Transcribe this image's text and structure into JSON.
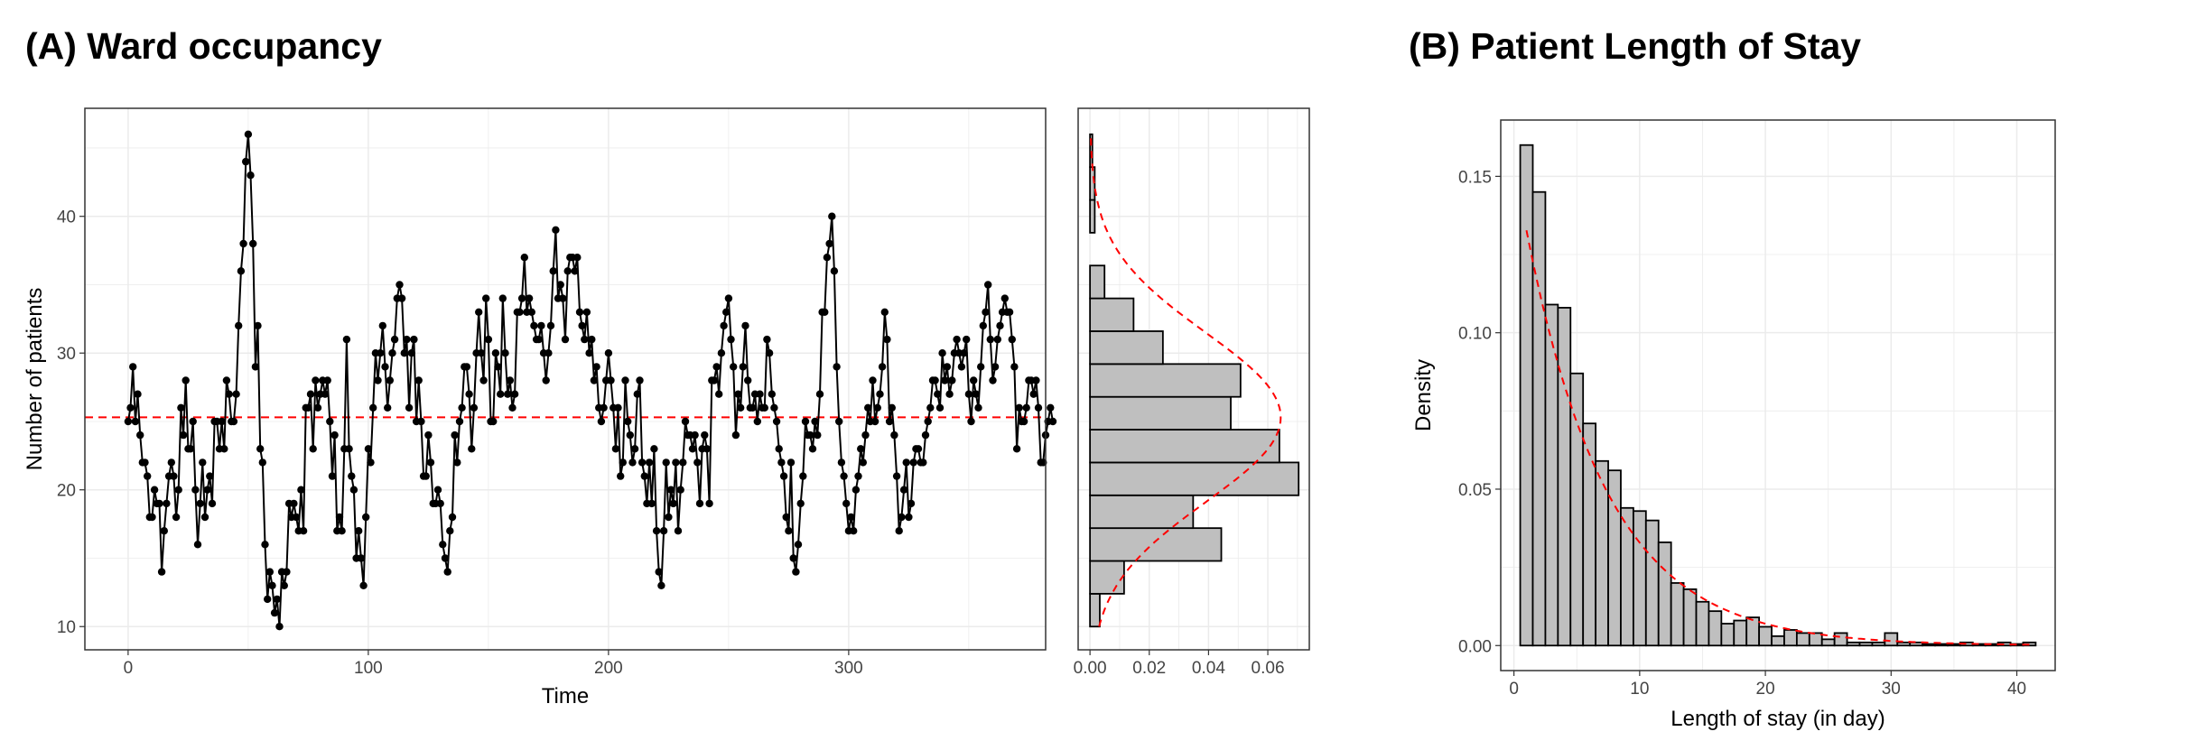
{
  "colors": {
    "line": "#000000",
    "reference": "#ff0000",
    "bar_fill": "#bfbfbf",
    "bar_stroke": "#000000",
    "grid": "#ebebeb",
    "panel_border": "#333333"
  },
  "chart_data": [
    {
      "id": "A",
      "type": "line",
      "title": "(A) Ward occupancy",
      "xlabel": "Time",
      "ylabel": "Number of patients",
      "xlim": [
        -18,
        382
      ],
      "ylim": [
        8.3,
        47.9
      ],
      "xticks": [
        0,
        100,
        200,
        300
      ],
      "yticks": [
        10,
        20,
        30,
        40
      ],
      "grid": true,
      "legend": "none",
      "reference_line": {
        "y": 25.3,
        "style": "dashed"
      },
      "series": [
        {
          "x_start": 0,
          "x_step": 1,
          "values": [
            25,
            26,
            29,
            25,
            27,
            24,
            22,
            22,
            21,
            18,
            18,
            20,
            19,
            19,
            14,
            17,
            19,
            21,
            22,
            21,
            18,
            20,
            26,
            24,
            28,
            23,
            23,
            25,
            20,
            16,
            19,
            22,
            18,
            20,
            21,
            19,
            25,
            25,
            23,
            25,
            23,
            28,
            27,
            25,
            25,
            27,
            32,
            36,
            38,
            44,
            46,
            43,
            38,
            29,
            32,
            23,
            22,
            16,
            12,
            14,
            13,
            11,
            12,
            10,
            14,
            13,
            14,
            19,
            18,
            19,
            18,
            17,
            20,
            17,
            26,
            26,
            27,
            23,
            28,
            26,
            27,
            28,
            27,
            28,
            25,
            21,
            24,
            17,
            18,
            17,
            23,
            31,
            23,
            21,
            20,
            15,
            17,
            15,
            13,
            18,
            23,
            22,
            26,
            30,
            28,
            30,
            32,
            29,
            26,
            28,
            30,
            31,
            34,
            35,
            34,
            30,
            31,
            26,
            30,
            31,
            25,
            28,
            25,
            21,
            21,
            24,
            22,
            19,
            19,
            20,
            19,
            16,
            15,
            14,
            17,
            18,
            24,
            22,
            25,
            26,
            29,
            29,
            27,
            23,
            26,
            30,
            33,
            30,
            28,
            34,
            31,
            25,
            25,
            30,
            29,
            27,
            34,
            30,
            27,
            28,
            26,
            27,
            33,
            33,
            34,
            37,
            33,
            34,
            33,
            32,
            31,
            31,
            32,
            30,
            28,
            30,
            32,
            36,
            39,
            34,
            35,
            34,
            31,
            36,
            37,
            37,
            36,
            37,
            33,
            32,
            31,
            33,
            30,
            31,
            28,
            29,
            26,
            25,
            26,
            28,
            30,
            28,
            26,
            23,
            26,
            21,
            22,
            28,
            25,
            24,
            22,
            23,
            27,
            28,
            22,
            21,
            19,
            22,
            19,
            23,
            17,
            14,
            13,
            17,
            22,
            18,
            20,
            19,
            22,
            17,
            20,
            22,
            25,
            24,
            24,
            23,
            24,
            22,
            19,
            23,
            24,
            23,
            19,
            28,
            28,
            29,
            27,
            30,
            32,
            33,
            34,
            31,
            29,
            24,
            27,
            26,
            29,
            32,
            28,
            26,
            26,
            27,
            25,
            27,
            26,
            26,
            31,
            30,
            27,
            26,
            25,
            23,
            22,
            21,
            18,
            17,
            22,
            15,
            14,
            16,
            19,
            21,
            25,
            24,
            24,
            23,
            25,
            24,
            27,
            33,
            33,
            37,
            38,
            40,
            36,
            29,
            25,
            22,
            21,
            19,
            17,
            18,
            17,
            20,
            21,
            23,
            22,
            24,
            26,
            25,
            28,
            25,
            26,
            27,
            29,
            33,
            31,
            25,
            26,
            24,
            21,
            17,
            18,
            20,
            22,
            18,
            19,
            22,
            23,
            23,
            22,
            22,
            24,
            25,
            26,
            28,
            28,
            27,
            26,
            30,
            28,
            29,
            27,
            28,
            30,
            31,
            30,
            29,
            30,
            31,
            27,
            25,
            28,
            27,
            26,
            29,
            32,
            33,
            35,
            31,
            28,
            29,
            31,
            32,
            33,
            34,
            33,
            33,
            31,
            29,
            23,
            26,
            25,
            25,
            26,
            28,
            28,
            27,
            28,
            26,
            22,
            22,
            24,
            25,
            26,
            25
          ]
        }
      ]
    },
    {
      "id": "A-hist",
      "type": "bar",
      "orientation": "horizontal",
      "xlim": [
        -0.004,
        0.074
      ],
      "ylim": [
        8.3,
        47.9
      ],
      "xticks": [
        0.0,
        0.02,
        0.04,
        0.06
      ],
      "xtick_labels": [
        "0.00",
        "0.02",
        "0.04",
        "0.06"
      ],
      "grid": true,
      "bin_edges": [
        10,
        12.4,
        14.8,
        17.2,
        19.6,
        22,
        24.4,
        26.8,
        29.2,
        31.6,
        34,
        36.4,
        38.8,
        41.2,
        43.6,
        46
      ],
      "values": [
        0.0033,
        0.0115,
        0.0443,
        0.0348,
        0.0704,
        0.0639,
        0.0475,
        0.0508,
        0.0246,
        0.0147,
        0.0049,
        0,
        0.0016,
        0.0016,
        0.0008
      ],
      "density_curve": {
        "mean": 25.3,
        "sd": 6.2,
        "style": "dashed"
      }
    },
    {
      "id": "B",
      "type": "bar",
      "title": "(B) Patient Length of Stay",
      "xlabel": "Length of stay (in day)",
      "ylabel": "Density",
      "xlim": [
        -1.05,
        43.05
      ],
      "ylim": [
        -0.008,
        0.168
      ],
      "xticks": [
        0,
        10,
        20,
        30,
        40
      ],
      "yticks": [
        0.0,
        0.05,
        0.1,
        0.15
      ],
      "ytick_labels": [
        "0.00",
        "0.05",
        "0.10",
        "0.15"
      ],
      "grid": true,
      "bin_start": 0.5,
      "bin_width": 1,
      "values": [
        0.16,
        0.145,
        0.109,
        0.108,
        0.087,
        0.071,
        0.059,
        0.056,
        0.044,
        0.043,
        0.04,
        0.033,
        0.02,
        0.018,
        0.014,
        0.011,
        0.007,
        0.008,
        0.009,
        0.006,
        0.003,
        0.005,
        0.004,
        0.004,
        0.002,
        0.004,
        0.001,
        0.001,
        0.001,
        0.004,
        0.001,
        0.001,
        0.0005,
        0.0005,
        0.0005,
        0.001,
        0.0005,
        0.0005,
        0.001,
        0.0005,
        0.001
      ],
      "density_curve": {
        "type": "exponential",
        "rate": 0.155,
        "x_from": 1,
        "x_to": 41,
        "style": "dashed"
      }
    }
  ]
}
